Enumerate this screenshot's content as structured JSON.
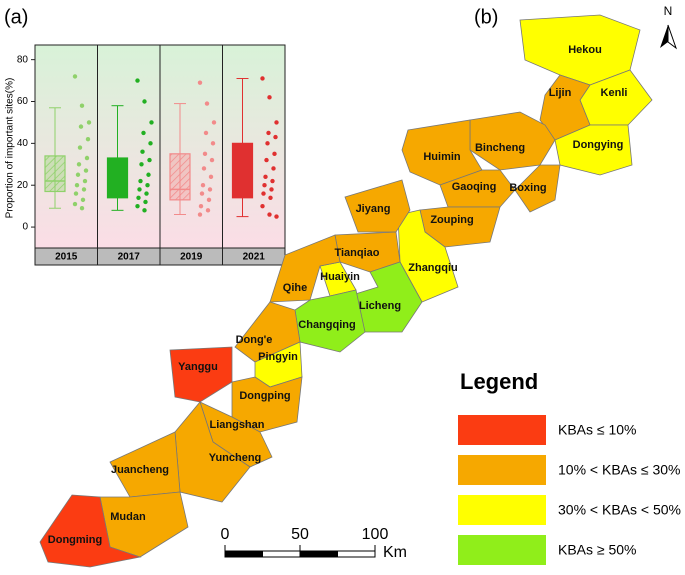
{
  "panel_labels": [
    "(a)",
    "(b)"
  ],
  "chart_data": {
    "type": "box",
    "y_label": "Proportion of important sites(%)",
    "categories": [
      "2015",
      "2017",
      "2019",
      "2021"
    ],
    "ylim": [
      -10,
      87
    ],
    "yticks": [
      0,
      20,
      40,
      60,
      80
    ],
    "boxes": [
      {
        "color": "#8fd16a",
        "hatched": true,
        "min": 9,
        "q1": 17,
        "median": 22,
        "q3": 34,
        "max": 57,
        "points": [
          72,
          58,
          50,
          48,
          42,
          38,
          33,
          30,
          27,
          25,
          22,
          20,
          18,
          16,
          13,
          11,
          9
        ]
      },
      {
        "color": "#22b022",
        "hatched": false,
        "min": 8,
        "q1": 14,
        "median": 20,
        "q3": 33,
        "max": 58,
        "points": [
          70,
          60,
          50,
          45,
          40,
          36,
          32,
          30,
          25,
          22,
          20,
          18,
          16,
          14,
          12,
          10,
          8
        ]
      },
      {
        "color": "#f28a8a",
        "hatched": true,
        "min": 6,
        "q1": 13,
        "median": 18,
        "q3": 35,
        "max": 59,
        "points": [
          69,
          59,
          50,
          45,
          40,
          35,
          32,
          28,
          24,
          20,
          18,
          16,
          13,
          10,
          8,
          6
        ]
      },
      {
        "color": "#e03030",
        "hatched": false,
        "min": 5,
        "q1": 14,
        "median": 20,
        "q3": 40,
        "max": 71,
        "points": [
          71,
          62,
          50,
          45,
          43,
          40,
          35,
          32,
          28,
          24,
          22,
          20,
          18,
          16,
          14,
          10,
          6,
          5
        ]
      }
    ]
  },
  "map": {
    "north": "N",
    "legend": {
      "title": "Legend",
      "items": [
        {
          "label": "KBAs ≤ 10%",
          "color": "#fb3c12"
        },
        {
          "label": "10% < KBAs ≤ 30%",
          "color": "#f6a800"
        },
        {
          "label": "30% < KBAs < 50%",
          "color": "#ffff00"
        },
        {
          "label": "KBAs ≥ 50%",
          "color": "#90ee1a"
        }
      ]
    },
    "scale": {
      "ticks": [
        0,
        50,
        100
      ],
      "unit": "Km"
    },
    "counties": [
      {
        "name": "Hekou",
        "class": 2
      },
      {
        "name": "Kenli",
        "class": 2
      },
      {
        "name": "Lijin",
        "class": 1
      },
      {
        "name": "Dongying",
        "class": 2
      },
      {
        "name": "Bincheng",
        "class": 1
      },
      {
        "name": "Boxing",
        "class": 1
      },
      {
        "name": "Huimin",
        "class": 1
      },
      {
        "name": "Gaoqing",
        "class": 1
      },
      {
        "name": "Zouping",
        "class": 1
      },
      {
        "name": "Zhangqiu",
        "class": 2
      },
      {
        "name": "Jiyang",
        "class": 1
      },
      {
        "name": "Tianqiao",
        "class": 1
      },
      {
        "name": "Huaiyin",
        "class": 2
      },
      {
        "name": "Qihe",
        "class": 1
      },
      {
        "name": "Licheng",
        "class": 3
      },
      {
        "name": "Changqing",
        "class": 3
      },
      {
        "name": "Dong'e",
        "class": 1
      },
      {
        "name": "Pingyin",
        "class": 2
      },
      {
        "name": "Yanggu",
        "class": 0
      },
      {
        "name": "Dongping",
        "class": 1
      },
      {
        "name": "Liangshan",
        "class": 1
      },
      {
        "name": "Yuncheng",
        "class": 1
      },
      {
        "name": "Juancheng",
        "class": 1
      },
      {
        "name": "Mudan",
        "class": 1
      },
      {
        "name": "Dongming",
        "class": 0
      }
    ]
  }
}
